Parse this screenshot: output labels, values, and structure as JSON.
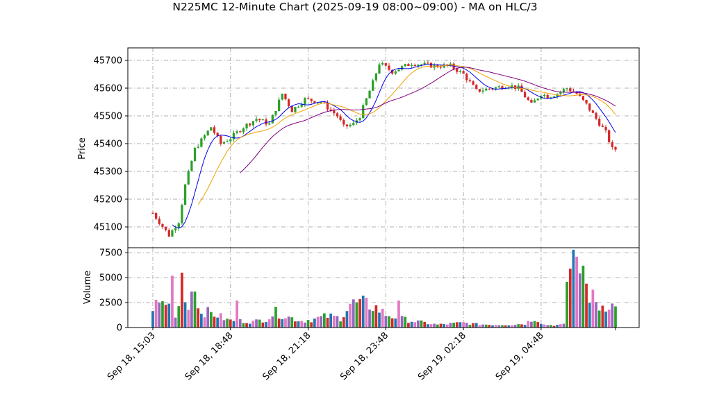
{
  "chart_data": {
    "type": "candlestick",
    "title": "N225MC 12-Minute Chart (2025-09-19 08:00~09:00) - MA on HLC/3",
    "price_panel": {
      "ylabel": "Price",
      "ylim": [
        45025,
        45745
      ],
      "yticks": [
        45100,
        45200,
        45300,
        45400,
        45500,
        45600,
        45700
      ],
      "grid": true
    },
    "volume_panel": {
      "ylabel": "Volume",
      "ylim": [
        0,
        8000
      ],
      "yticks": [
        0,
        2500,
        5000,
        7500
      ],
      "ytick_labels": [
        "0",
        "2500",
        "5000",
        "7500"
      ],
      "grid": true
    },
    "x_ticks": [
      {
        "label": "Sep 18, 15:03",
        "index": 0
      },
      {
        "label": "Sep 18, 18:48",
        "index": 24
      },
      {
        "label": "Sep 18, 21:18",
        "index": 48
      },
      {
        "label": "Sep 18, 23:48",
        "index": 72
      },
      {
        "label": "Sep 19, 02:18",
        "index": 96
      },
      {
        "label": "Sep 19, 04:48",
        "index": 120
      }
    ],
    "n_bars": 144,
    "price_anchors": [
      [
        0,
        45150
      ],
      [
        5,
        45070
      ],
      [
        8,
        45120
      ],
      [
        10,
        45250
      ],
      [
        13,
        45380
      ],
      [
        18,
        45460
      ],
      [
        21,
        45400
      ],
      [
        24,
        45420
      ],
      [
        28,
        45460
      ],
      [
        32,
        45490
      ],
      [
        36,
        45470
      ],
      [
        40,
        45580
      ],
      [
        43,
        45520
      ],
      [
        47,
        45560
      ],
      [
        52,
        45550
      ],
      [
        57,
        45500
      ],
      [
        59,
        45460
      ],
      [
        62,
        45470
      ],
      [
        64,
        45500
      ],
      [
        68,
        45620
      ],
      [
        70,
        45690
      ],
      [
        74,
        45660
      ],
      [
        80,
        45690
      ],
      [
        87,
        45680
      ],
      [
        92,
        45680
      ],
      [
        96,
        45650
      ],
      [
        100,
        45590
      ],
      [
        105,
        45600
      ],
      [
        110,
        45610
      ],
      [
        113,
        45600
      ],
      [
        117,
        45540
      ],
      [
        120,
        45580
      ],
      [
        122,
        45570
      ],
      [
        125,
        45580
      ],
      [
        128,
        45600
      ],
      [
        131,
        45580
      ],
      [
        134,
        45540
      ],
      [
        137,
        45490
      ],
      [
        140,
        45440
      ],
      [
        142,
        45380
      ],
      [
        143,
        45380
      ]
    ],
    "volume_anchors": [
      [
        0,
        2300
      ],
      [
        4,
        2700
      ],
      [
        7,
        1500
      ],
      [
        9,
        3200
      ],
      [
        12,
        2400
      ],
      [
        15,
        1800
      ],
      [
        18,
        1500
      ],
      [
        20,
        1300
      ],
      [
        23,
        800
      ],
      [
        27,
        700
      ],
      [
        31,
        600
      ],
      [
        35,
        900
      ],
      [
        38,
        1600
      ],
      [
        42,
        1100
      ],
      [
        46,
        700
      ],
      [
        50,
        900
      ],
      [
        54,
        1200
      ],
      [
        58,
        1000
      ],
      [
        61,
        2500
      ],
      [
        65,
        2500
      ],
      [
        68,
        2300
      ],
      [
        72,
        1400
      ],
      [
        76,
        1000
      ],
      [
        80,
        700
      ],
      [
        84,
        500
      ],
      [
        88,
        300
      ],
      [
        92,
        400
      ],
      [
        96,
        500
      ],
      [
        100,
        350
      ],
      [
        105,
        300
      ],
      [
        110,
        300
      ],
      [
        115,
        400
      ],
      [
        118,
        1000
      ],
      [
        121,
        300
      ],
      [
        124,
        250
      ],
      [
        127,
        300
      ],
      [
        128,
        5200
      ],
      [
        130,
        7200
      ],
      [
        132,
        5200
      ],
      [
        135,
        3500
      ],
      [
        138,
        2200
      ],
      [
        141,
        2600
      ],
      [
        143,
        2000
      ]
    ],
    "volume_spikes": [
      [
        6,
        5200
      ],
      [
        9,
        5500
      ],
      [
        12,
        3600
      ],
      [
        13,
        3600
      ],
      [
        26,
        2700
      ],
      [
        76,
        2700
      ],
      [
        130,
        7800
      ],
      [
        131,
        7100
      ],
      [
        133,
        6200
      ],
      [
        134,
        4400
      ]
    ],
    "ma_series": [
      {
        "color": "#0000ee",
        "period": 7
      },
      {
        "color": "#f0a000",
        "period": 15
      },
      {
        "color": "#800080",
        "period": 28
      }
    ],
    "colors": {
      "up": "#2ca02c",
      "down": "#d62728",
      "volume_a": "#1f77b4",
      "volume_b": "#e377c2",
      "volume_c": "#9467bd"
    }
  }
}
